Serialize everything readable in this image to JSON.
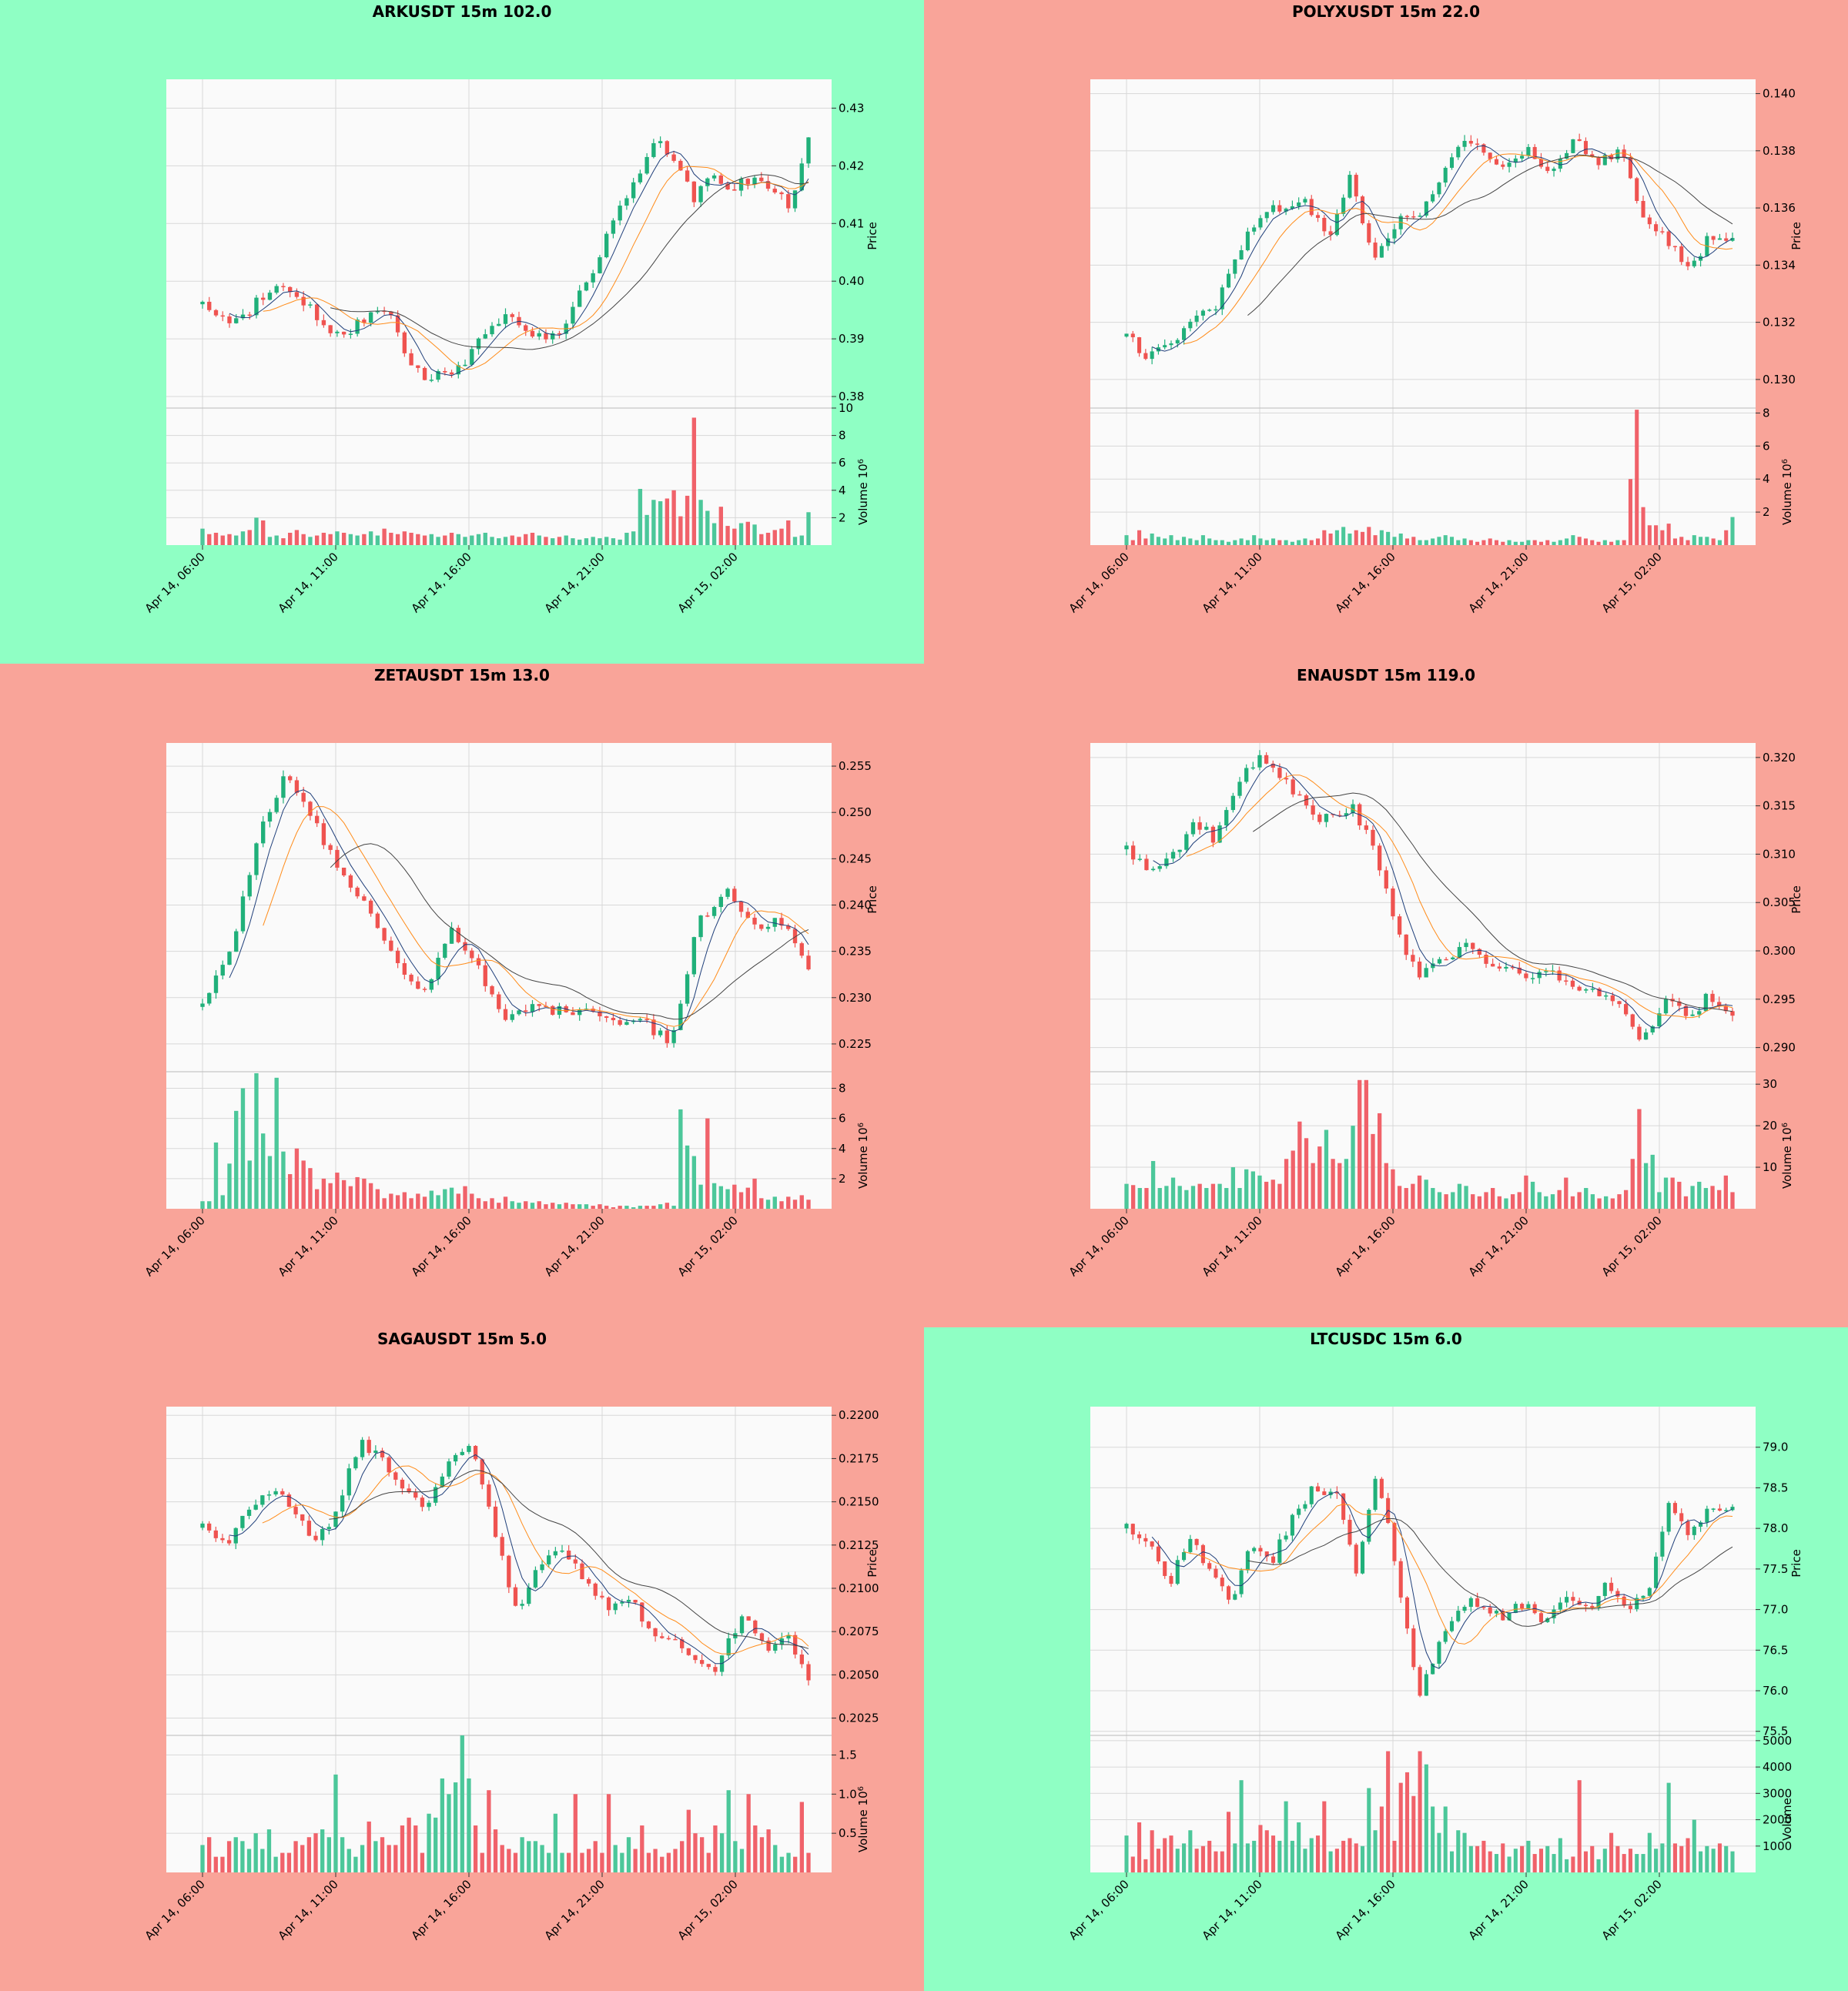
{
  "colors": {
    "up": "#26a69a",
    "up_body": "#20b07a",
    "down": "#ef5350",
    "green_bg": "#8fffc4",
    "red_bg": "#f9a499",
    "ma1": "#1f3f7a",
    "ma2": "#ff8c1a",
    "ma3": "#444444"
  },
  "x_ticks": [
    "Apr 14, 06:00",
    "Apr 14, 11:00",
    "Apr 14, 16:00",
    "Apr 14, 21:00",
    "Apr 15, 02:00"
  ],
  "chart_data": [
    {
      "type": "candlestick",
      "title": "ARKUSDT 15m 102.0",
      "background": "green",
      "ylabel": "Price",
      "vol_label": "Volume  10",
      "vol_exp": "6",
      "ylim": [
        0.378,
        0.435
      ],
      "yticks": [
        "0.38",
        "0.39",
        "0.40",
        "0.41",
        "0.42",
        "0.43"
      ],
      "vlim": [
        0,
        10
      ],
      "vticks": [
        "2",
        "4",
        "6",
        "8",
        "10"
      ],
      "path": [
        0.396,
        0.394,
        0.393,
        0.397,
        0.399,
        0.398,
        0.394,
        0.391,
        0.392,
        0.395,
        0.393,
        0.386,
        0.383,
        0.384,
        0.386,
        0.392,
        0.394,
        0.392,
        0.39,
        0.391,
        0.398,
        0.405,
        0.412,
        0.418,
        0.425,
        0.42,
        0.414,
        0.419,
        0.416,
        0.418,
        0.416,
        0.413,
        0.424
      ],
      "volume": [
        1.2,
        0.8,
        0.9,
        0.7,
        0.8,
        0.7,
        1.0,
        1.1,
        2.0,
        1.8,
        0.6,
        0.7,
        0.5,
        0.9,
        1.1,
        0.8,
        0.6,
        0.7,
        0.9,
        0.8,
        1.0,
        0.9,
        0.8,
        0.7,
        0.8,
        1.0,
        0.7,
        1.2,
        0.9,
        0.8,
        1.0,
        0.9,
        0.8,
        0.7,
        0.8,
        0.6,
        0.7,
        0.9,
        0.8,
        0.6,
        0.7,
        0.8,
        0.9,
        0.6,
        0.5,
        0.6,
        0.7,
        0.6,
        0.8,
        0.9,
        0.7,
        0.6,
        0.5,
        0.6,
        0.7,
        0.5,
        0.4,
        0.5,
        0.6,
        0.5,
        0.6,
        0.5,
        0.4,
        0.9,
        1.0,
        4.1,
        2.2,
        3.3,
        3.2,
        3.4,
        4.0,
        2.1,
        3.6,
        9.3,
        3.3,
        2.5,
        1.6,
        2.8,
        1.4,
        1.2,
        1.6,
        1.7,
        1.5,
        0.8,
        0.9,
        1.1,
        1.2,
        1.8,
        0.6,
        0.7,
        2.4
      ]
    },
    {
      "type": "candlestick",
      "title": "POLYXUSDT 15m 22.0",
      "background": "red",
      "ylabel": "Price",
      "vol_label": "Volume  10",
      "vol_exp": "6",
      "ylim": [
        0.129,
        0.1405
      ],
      "yticks": [
        "0.130",
        "0.132",
        "0.134",
        "0.136",
        "0.138",
        "0.140"
      ],
      "vlim": [
        0,
        8.3
      ],
      "vticks": [
        "2",
        "4",
        "6",
        "8"
      ],
      "path": [
        0.1315,
        0.1308,
        0.1312,
        0.1322,
        0.1325,
        0.1345,
        0.1358,
        0.136,
        0.1362,
        0.135,
        0.1372,
        0.134,
        0.1355,
        0.1358,
        0.137,
        0.1385,
        0.1378,
        0.1375,
        0.138,
        0.1372,
        0.1385,
        0.1375,
        0.138,
        0.1355,
        0.135,
        0.1338,
        0.135,
        0.1348
      ],
      "volume": [
        0.6,
        0.3,
        0.9,
        0.4,
        0.7,
        0.5,
        0.4,
        0.6,
        0.3,
        0.5,
        0.4,
        0.3,
        0.6,
        0.4,
        0.3,
        0.3,
        0.2,
        0.3,
        0.4,
        0.3,
        0.6,
        0.4,
        0.3,
        0.4,
        0.3,
        0.3,
        0.2,
        0.3,
        0.4,
        0.3,
        0.4,
        0.9,
        0.7,
        0.9,
        1.1,
        0.7,
        0.9,
        0.8,
        1.1,
        0.6,
        0.9,
        0.8,
        0.5,
        0.7,
        0.4,
        0.5,
        0.3,
        0.3,
        0.4,
        0.5,
        0.6,
        0.5,
        0.3,
        0.4,
        0.3,
        0.2,
        0.3,
        0.4,
        0.3,
        0.2,
        0.3,
        0.2,
        0.2,
        0.3,
        0.3,
        0.2,
        0.3,
        0.2,
        0.3,
        0.4,
        0.6,
        0.5,
        0.4,
        0.3,
        0.2,
        0.3,
        0.2,
        0.3,
        0.3,
        4.0,
        8.2,
        2.3,
        1.2,
        1.2,
        0.9,
        1.3,
        0.4,
        0.5,
        0.3,
        0.6,
        0.5,
        0.5,
        0.4,
        0.3,
        0.9,
        1.7
      ]
    },
    {
      "type": "candlestick",
      "title": "ZETAUSDT 15m 13.0",
      "background": "red",
      "ylabel": "Price",
      "vol_label": "Volume  10",
      "vol_exp": "6",
      "ylim": [
        0.222,
        0.2575
      ],
      "yticks": [
        "0.225",
        "0.230",
        "0.235",
        "0.240",
        "0.245",
        "0.250",
        "0.255"
      ],
      "vlim": [
        0,
        9.1
      ],
      "vticks": [
        "2",
        "4",
        "6",
        "8"
      ],
      "path": [
        0.229,
        0.235,
        0.247,
        0.254,
        0.249,
        0.244,
        0.24,
        0.234,
        0.23,
        0.238,
        0.233,
        0.228,
        0.229,
        0.2285,
        0.229,
        0.2275,
        0.2275,
        0.225,
        0.238,
        0.2415,
        0.2375,
        0.2385,
        0.2335
      ],
      "volume": [
        0.5,
        0.5,
        4.4,
        0.9,
        3.0,
        6.5,
        8.0,
        3.2,
        9.0,
        5.0,
        3.5,
        8.7,
        3.8,
        2.3,
        4.0,
        3.2,
        2.7,
        1.3,
        2.0,
        1.7,
        2.4,
        1.9,
        1.5,
        2.1,
        2.0,
        1.7,
        1.3,
        0.7,
        1.0,
        0.9,
        1.1,
        0.7,
        1.0,
        0.8,
        1.2,
        0.9,
        1.3,
        1.4,
        1.0,
        1.5,
        1.0,
        0.7,
        0.5,
        0.7,
        0.4,
        0.8,
        0.5,
        0.4,
        0.5,
        0.4,
        0.5,
        0.3,
        0.4,
        0.3,
        0.4,
        0.3,
        0.3,
        0.3,
        0.2,
        0.3,
        0.2,
        0.1,
        0.2,
        0.2,
        0.1,
        0.2,
        0.2,
        0.2,
        0.3,
        0.4,
        0.2,
        6.6,
        4.2,
        3.5,
        1.6,
        6.0,
        1.7,
        1.5,
        1.3,
        1.6,
        1.1,
        1.4,
        2.0,
        0.7,
        0.6,
        0.8,
        0.5,
        0.8,
        0.6,
        0.9,
        0.6
      ]
    },
    {
      "type": "candlestick",
      "title": "ENAUSDT 15m 119.0",
      "background": "red",
      "ylabel": "Price",
      "vol_label": "Volume  10",
      "vol_exp": "6",
      "ylim": [
        0.2875,
        0.3215
      ],
      "yticks": [
        "0.290",
        "0.295",
        "0.300",
        "0.305",
        "0.310",
        "0.315",
        "0.320"
      ],
      "vlim": [
        0,
        33
      ],
      "vticks": [
        "10",
        "20",
        "30"
      ],
      "path": [
        0.3105,
        0.3085,
        0.3095,
        0.3135,
        0.3115,
        0.3175,
        0.32,
        0.318,
        0.3145,
        0.3135,
        0.315,
        0.311,
        0.3025,
        0.297,
        0.299,
        0.3005,
        0.299,
        0.2985,
        0.2975,
        0.2975,
        0.2965,
        0.296,
        0.2945,
        0.2905,
        0.295,
        0.293,
        0.2955,
        0.2935
      ],
      "volume": [
        6.0,
        5.7,
        5.0,
        5.0,
        11.5,
        5.0,
        5.5,
        7.5,
        5.5,
        4.5,
        5.5,
        6.0,
        5.0,
        6.0,
        6.0,
        5.0,
        10.0,
        5.0,
        9.5,
        9.0,
        8.0,
        6.5,
        7.0,
        6.0,
        12.0,
        14.0,
        21.0,
        17.0,
        11.0,
        15.0,
        19.0,
        12.0,
        11.0,
        12.0,
        20.0,
        31.0,
        31.0,
        18.0,
        23.0,
        11.0,
        9.5,
        5.5,
        5.0,
        6.0,
        8.0,
        7.0,
        5.0,
        4.0,
        3.5,
        4.0,
        6.0,
        5.5,
        3.5,
        3.0,
        4.0,
        5.0,
        3.0,
        2.5,
        3.5,
        4.0,
        8.0,
        6.5,
        4.0,
        3.0,
        3.5,
        4.5,
        7.5,
        3.0,
        4.0,
        5.0,
        3.5,
        2.5,
        3.0,
        2.5,
        3.5,
        4.5,
        12.0,
        24.0,
        11.0,
        13.0,
        4.0,
        7.5,
        7.5,
        6.5,
        3.0,
        5.5,
        6.5,
        5.0,
        5.5,
        4.5,
        8.0,
        4.0
      ]
    },
    {
      "type": "candlestick",
      "title": "SAGAUSDT 15m 5.0",
      "background": "red",
      "ylabel": "Price",
      "vol_label": "Volume  10",
      "vol_exp": "6",
      "ylim": [
        0.2015,
        0.2205
      ],
      "yticks": [
        "0.2025",
        "0.2050",
        "0.2075",
        "0.2100",
        "0.2125",
        "0.2150",
        "0.2175",
        "0.2200"
      ],
      "vlim": [
        0,
        1.75
      ],
      "vticks": [
        "0.5",
        "1.0",
        "1.5"
      ],
      "path": [
        0.2135,
        0.2125,
        0.2145,
        0.2155,
        0.2148,
        0.2125,
        0.2145,
        0.2185,
        0.2175,
        0.2155,
        0.2145,
        0.2175,
        0.2185,
        0.2135,
        0.2085,
        0.2115,
        0.2125,
        0.2105,
        0.209,
        0.2095,
        0.2075,
        0.207,
        0.2055,
        0.2055,
        0.2085,
        0.2065,
        0.2075,
        0.205
      ],
      "volume": [
        0.35,
        0.45,
        0.2,
        0.2,
        0.4,
        0.45,
        0.4,
        0.3,
        0.5,
        0.3,
        0.55,
        0.2,
        0.25,
        0.25,
        0.4,
        0.35,
        0.45,
        0.5,
        0.55,
        0.45,
        1.25,
        0.45,
        0.3,
        0.2,
        0.35,
        0.65,
        0.4,
        0.45,
        0.35,
        0.35,
        0.6,
        0.7,
        0.6,
        0.25,
        0.75,
        0.7,
        1.2,
        1.0,
        1.15,
        1.75,
        1.2,
        0.6,
        0.25,
        1.05,
        0.55,
        0.35,
        0.3,
        0.25,
        0.45,
        0.4,
        0.4,
        0.35,
        0.25,
        0.75,
        0.25,
        0.25,
        1.0,
        0.25,
        0.3,
        0.4,
        0.25,
        1.0,
        0.35,
        0.25,
        0.45,
        0.3,
        0.6,
        0.25,
        0.3,
        0.2,
        0.25,
        0.3,
        0.4,
        0.8,
        0.5,
        0.45,
        0.25,
        0.6,
        0.5,
        1.05,
        0.4,
        0.3,
        1.0,
        0.6,
        0.45,
        0.55,
        0.35,
        0.2,
        0.25,
        0.2,
        0.9,
        0.25
      ]
    },
    {
      "type": "candlestick",
      "title": "LTCUSDC 15m 6.0",
      "background": "green",
      "ylabel": "Price",
      "vol_label": "Volume",
      "vol_exp": "",
      "ylim": [
        75.45,
        79.5
      ],
      "yticks": [
        "75.5",
        "76.0",
        "76.5",
        "77.0",
        "77.5",
        "78.0",
        "78.5",
        "79.0"
      ],
      "vlim": [
        0,
        5200
      ],
      "vticks": [
        "1000",
        "2000",
        "3000",
        "4000",
        "5000"
      ],
      "path": [
        78.0,
        77.85,
        77.3,
        77.9,
        77.5,
        77.1,
        77.8,
        77.6,
        78.2,
        78.5,
        78.45,
        77.5,
        78.7,
        77.4,
        75.9,
        76.6,
        77.1,
        77.05,
        76.9,
        77.1,
        76.8,
        77.2,
        77.0,
        77.3,
        76.95,
        77.3,
        78.35,
        77.9,
        78.3,
        78.2
      ],
      "volume": [
        1400,
        600,
        1900,
        500,
        1600,
        900,
        1300,
        1400,
        900,
        1100,
        1600,
        900,
        1000,
        1200,
        800,
        800,
        2300,
        1100,
        3500,
        1100,
        1200,
        1800,
        1600,
        1400,
        1200,
        2700,
        1200,
        1900,
        900,
        1300,
        1400,
        2700,
        800,
        900,
        1200,
        1300,
        1100,
        1000,
        3200,
        1600,
        2500,
        4600,
        1200,
        3400,
        3800,
        2900,
        4600,
        4100,
        2500,
        1500,
        2500,
        800,
        1600,
        1500,
        1000,
        1000,
        1200,
        800,
        700,
        1100,
        600,
        900,
        1000,
        1200,
        700,
        900,
        1000,
        700,
        1300,
        500,
        600,
        3500,
        800,
        1000,
        500,
        900,
        1500,
        1000,
        700,
        900,
        700,
        700,
        1500,
        900,
        1100,
        3400,
        1100,
        1000,
        1300,
        2000,
        800,
        1000,
        900,
        1100,
        1000,
        800
      ]
    }
  ]
}
